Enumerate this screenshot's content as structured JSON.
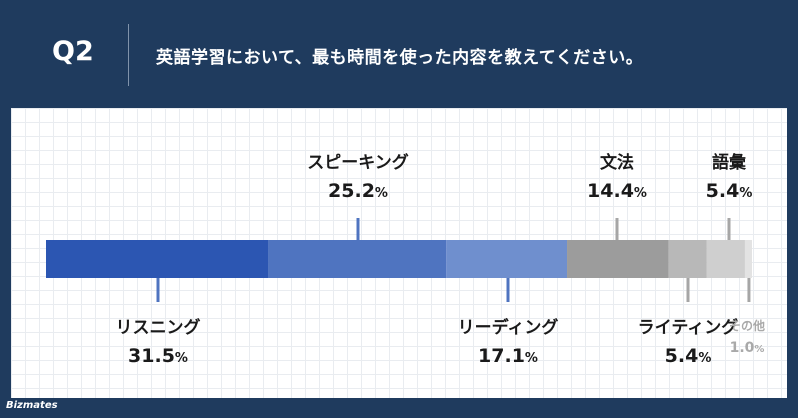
{
  "header": {
    "q_number": "Q2",
    "question": "英語学習において、最も時間を使った内容を教えてください。"
  },
  "brand": "Bizmates",
  "chart_data": {
    "type": "bar",
    "orientation": "horizontal-stacked",
    "unit": "%",
    "categories": [
      "リスニング",
      "スピーキング",
      "リーディング",
      "文法",
      "ライティング",
      "語彙",
      "その他"
    ],
    "values": [
      31.5,
      25.2,
      17.1,
      14.4,
      5.4,
      5.4,
      1.0
    ],
    "value_labels": [
      "31.5",
      "25.2",
      "17.1",
      "14.4",
      "5.4",
      "5.4",
      "1.0"
    ],
    "colors": [
      "#2c56b2",
      "#4f74c0",
      "#6f8fce",
      "#9c9c9c",
      "#b8b8b8",
      "#cfcfcf",
      "#e3e3e3"
    ],
    "label_position": [
      "below",
      "above",
      "below",
      "above",
      "below",
      "above",
      "below"
    ],
    "label_color": [
      "#1a1a1a",
      "#1a1a1a",
      "#1a1a1a",
      "#1a1a1a",
      "#1a1a1a",
      "#1a1a1a",
      "#a9a9a9"
    ],
    "grid": true
  }
}
